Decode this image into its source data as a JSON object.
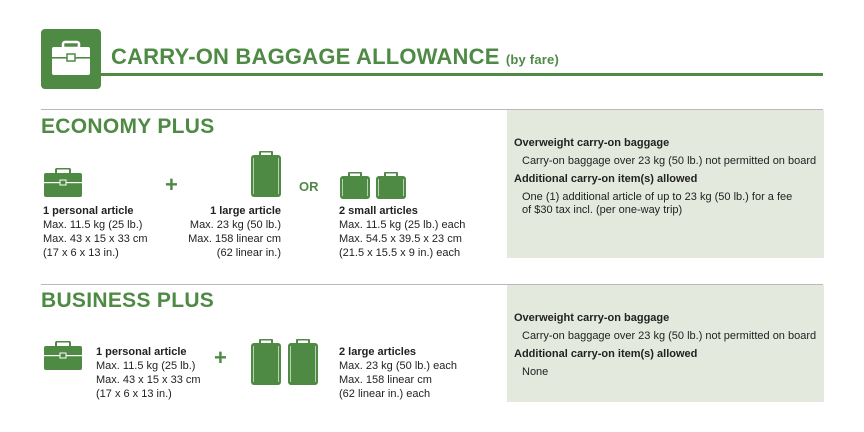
{
  "header": {
    "title": "CARRY-ON BAGGAGE ALLOWANCE",
    "subtitle": "(by fare)",
    "icon": "briefcase-icon"
  },
  "colors": {
    "accent": "#4f8a45",
    "panel": "#e4e9dd"
  },
  "economy": {
    "title": "ECONOMY PLUS",
    "plus": "+",
    "or": "OR",
    "personal": {
      "title": "1 personal article",
      "lines": [
        "Max. 11.5 kg (25 lb.)",
        "Max. 43 x 15 x 33 cm",
        "(17 x 6 x 13 in.)"
      ]
    },
    "large": {
      "title": "1 large article",
      "lines": [
        "Max. 23 kg (50 lb.)",
        "Max. 158 linear cm",
        "(62 linear in.)"
      ]
    },
    "small": {
      "title": "2 small articles",
      "lines": [
        "Max. 11.5 kg (25 lb.) each",
        "Max. 54.5 x 39.5 x 23 cm",
        "(21.5 x 15.5 x 9 in.) each"
      ]
    },
    "info": {
      "overweight_heading": "Overweight carry-on baggage",
      "overweight_text": "Carry-on baggage over 23 kg (50 lb.) not permitted on board",
      "additional_heading": "Additional carry-on item(s) allowed",
      "additional_lines": [
        "One (1) additional article of up to 23 kg (50 lb.) for a fee",
        "of  $30 tax incl. (per one-way trip)"
      ]
    }
  },
  "business": {
    "title": "BUSINESS PLUS",
    "plus": "+",
    "personal": {
      "title": "1 personal article",
      "lines": [
        "Max. 11.5 kg (25 lb.)",
        "Max. 43 x 15 x 33 cm",
        "(17 x 6 x 13 in.)"
      ]
    },
    "large": {
      "title": "2 large articles",
      "lines": [
        "Max. 23 kg (50 lb.) each",
        "Max. 158 linear cm",
        "(62 linear in.) each"
      ]
    },
    "info": {
      "overweight_heading": "Overweight carry-on baggage",
      "overweight_text": "Carry-on baggage over 23 kg (50 lb.) not permitted on board",
      "additional_heading": "Additional carry-on item(s) allowed",
      "additional_lines": [
        "None"
      ]
    }
  }
}
